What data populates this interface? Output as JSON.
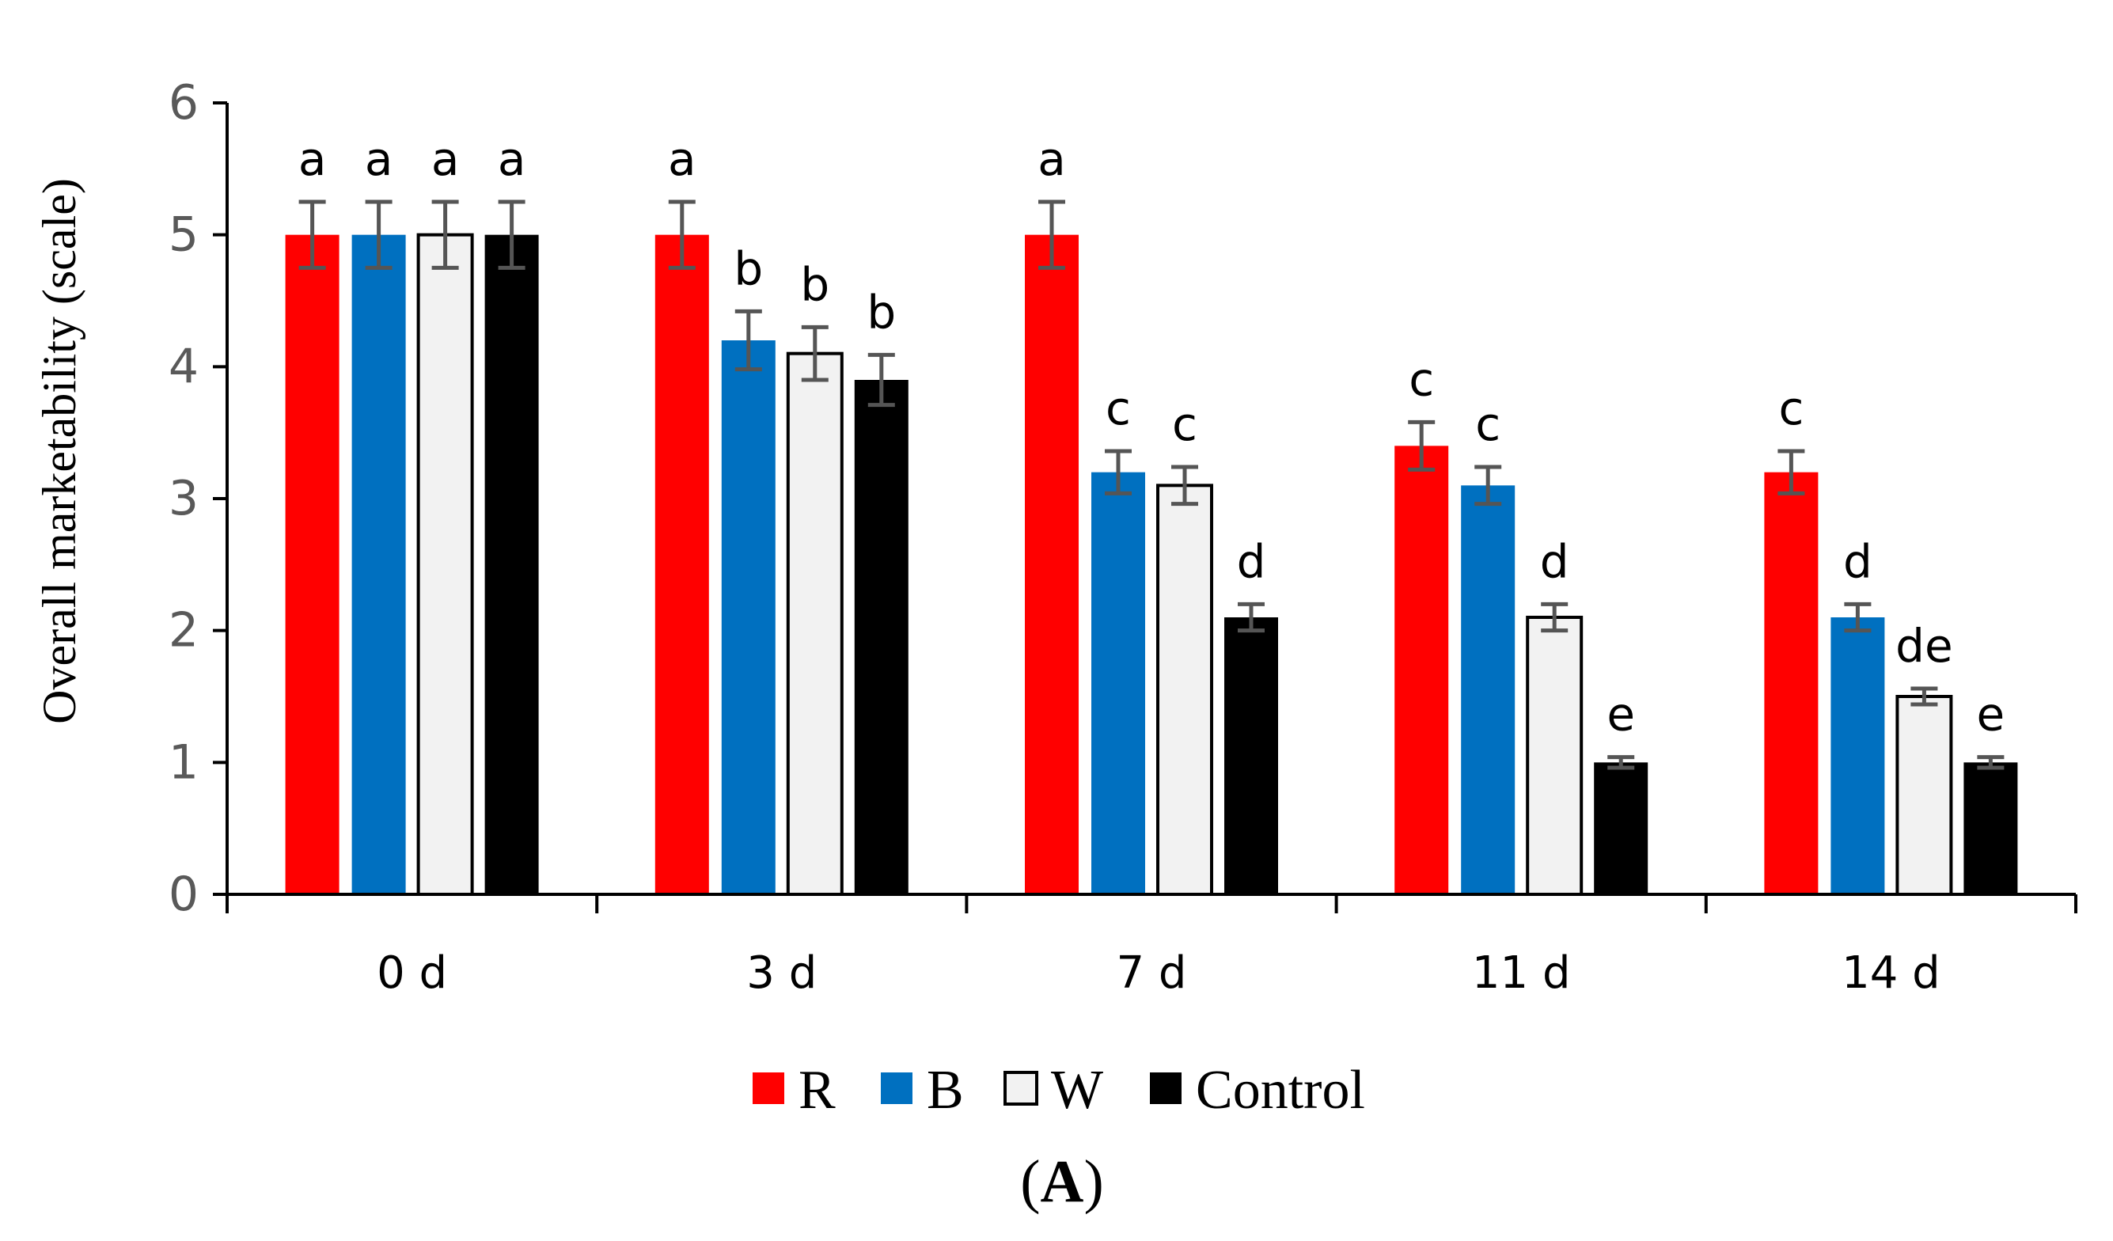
{
  "chart_data": {
    "type": "bar",
    "categories": [
      "0 d",
      "3 d",
      "7 d",
      "11 d",
      "14 d"
    ],
    "ylabel": "Overall marketability (scale)",
    "xlabel": "",
    "ylim": [
      0,
      6
    ],
    "yticks": [
      "0",
      "1",
      "2",
      "3",
      "4",
      "5",
      "6"
    ],
    "legend_position": "bottom",
    "caption_open": "(",
    "caption_letter": "A",
    "caption_close": ")",
    "series": [
      {
        "name": "R",
        "color": "#ff0000",
        "values": [
          5.0,
          5.0,
          5.0,
          3.4,
          3.2
        ],
        "errors": [
          0.25,
          0.25,
          0.25,
          0.18,
          0.16
        ],
        "letters": [
          "a",
          "a",
          "a",
          "c",
          "c"
        ]
      },
      {
        "name": "B",
        "color": "#0070c0",
        "values": [
          5.0,
          4.2,
          3.2,
          3.1,
          2.1
        ],
        "errors": [
          0.25,
          0.22,
          0.16,
          0.14,
          0.1
        ],
        "letters": [
          "a",
          "b",
          "c",
          "c",
          "d"
        ]
      },
      {
        "name": "W",
        "color": "#f2f2f2",
        "values": [
          5.0,
          4.1,
          3.1,
          2.1,
          1.5
        ],
        "errors": [
          0.25,
          0.2,
          0.14,
          0.1,
          0.06
        ],
        "letters": [
          "a",
          "b",
          "c",
          "d",
          "de"
        ]
      },
      {
        "name": "Control",
        "color": "#000000",
        "values": [
          5.0,
          3.9,
          2.1,
          1.0,
          1.0
        ],
        "errors": [
          0.25,
          0.19,
          0.1,
          0.04,
          0.04
        ],
        "letters": [
          "a",
          "b",
          "d",
          "e",
          "e"
        ]
      }
    ]
  }
}
